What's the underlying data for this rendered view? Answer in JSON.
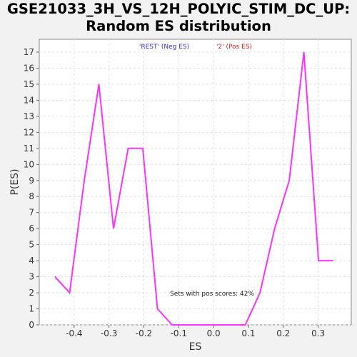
{
  "chart_data": {
    "type": "line",
    "title_line1": "GSE21033_3H_VS_12H_POLYIC_STIM_DC_UP:",
    "title_line2": "Random ES distribution",
    "xlabel": "ES",
    "ylabel": "P(ES)",
    "xlim": [
      -0.5,
      0.395
    ],
    "ylim": [
      0,
      17.8
    ],
    "xticks": [
      -0.4,
      -0.3,
      -0.2,
      -0.1,
      0.0,
      0.1,
      0.2,
      0.3
    ],
    "xtick_labels": [
      "-0.4",
      "-0.3",
      "-0.2",
      "-0.1",
      "0.0",
      "0.1",
      "0.2",
      "0.3"
    ],
    "yticks": [
      0,
      1,
      2,
      3,
      4,
      5,
      6,
      7,
      8,
      9,
      10,
      11,
      12,
      13,
      14,
      15,
      16,
      17
    ],
    "grid": true,
    "legend": [
      {
        "label": "'REST' (Neg ES)",
        "color": "#3333cc"
      },
      {
        "label": "'2' (Pos ES)",
        "color": "#dd2222"
      }
    ],
    "annotation": "Sets with pos scores: 42%",
    "line_color": "#ff33ff",
    "series": [
      {
        "x": [
          -0.455,
          -0.413,
          -0.371,
          -0.329,
          -0.287,
          -0.245,
          -0.203,
          -0.161,
          -0.119,
          -0.077,
          -0.035,
          0.007,
          0.049,
          0.091,
          0.133,
          0.175,
          0.217,
          0.259,
          0.301,
          0.343
        ],
        "values": [
          3,
          2,
          9,
          15,
          6,
          11,
          11,
          1,
          0,
          0,
          0,
          0,
          0,
          0,
          2,
          6,
          9,
          17,
          4,
          4
        ]
      }
    ]
  }
}
